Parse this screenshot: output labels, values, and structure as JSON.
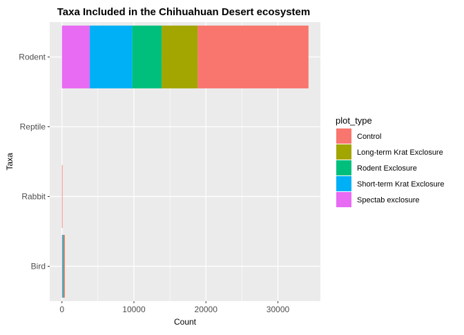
{
  "chart_data": {
    "type": "bar",
    "orientation": "horizontal",
    "stacked": true,
    "title": "Taxa Included in the Chihuahuan Desert ecosystem",
    "xlabel": "Count",
    "ylabel": "Taxa",
    "categories": [
      "Bird",
      "Rabbit",
      "Reptile",
      "Rodent"
    ],
    "xlim": [
      -1700,
      35900
    ],
    "xticks": [
      0,
      10000,
      20000,
      30000
    ],
    "xtick_labels": [
      "0",
      "10000",
      "20000",
      "30000"
    ],
    "grid": true,
    "legend": {
      "title": "plot_type",
      "position": "right"
    },
    "series": [
      {
        "name": "Control",
        "color": "#F8766D",
        "values": [
          150,
          75,
          0,
          15400
        ]
      },
      {
        "name": "Long-term Krat Exclosure",
        "color": "#A3A500",
        "values": [
          40,
          0,
          0,
          5000
        ]
      },
      {
        "name": "Rodent Exclosure",
        "color": "#00BF7D",
        "values": [
          60,
          0,
          0,
          4100
        ]
      },
      {
        "name": "Short-term Krat Exclosure",
        "color": "#00B0F6",
        "values": [
          100,
          0,
          0,
          5900
        ]
      },
      {
        "name": "Spectab exclosure",
        "color": "#E76BF3",
        "values": [
          50,
          0,
          0,
          3850
        ]
      }
    ]
  }
}
